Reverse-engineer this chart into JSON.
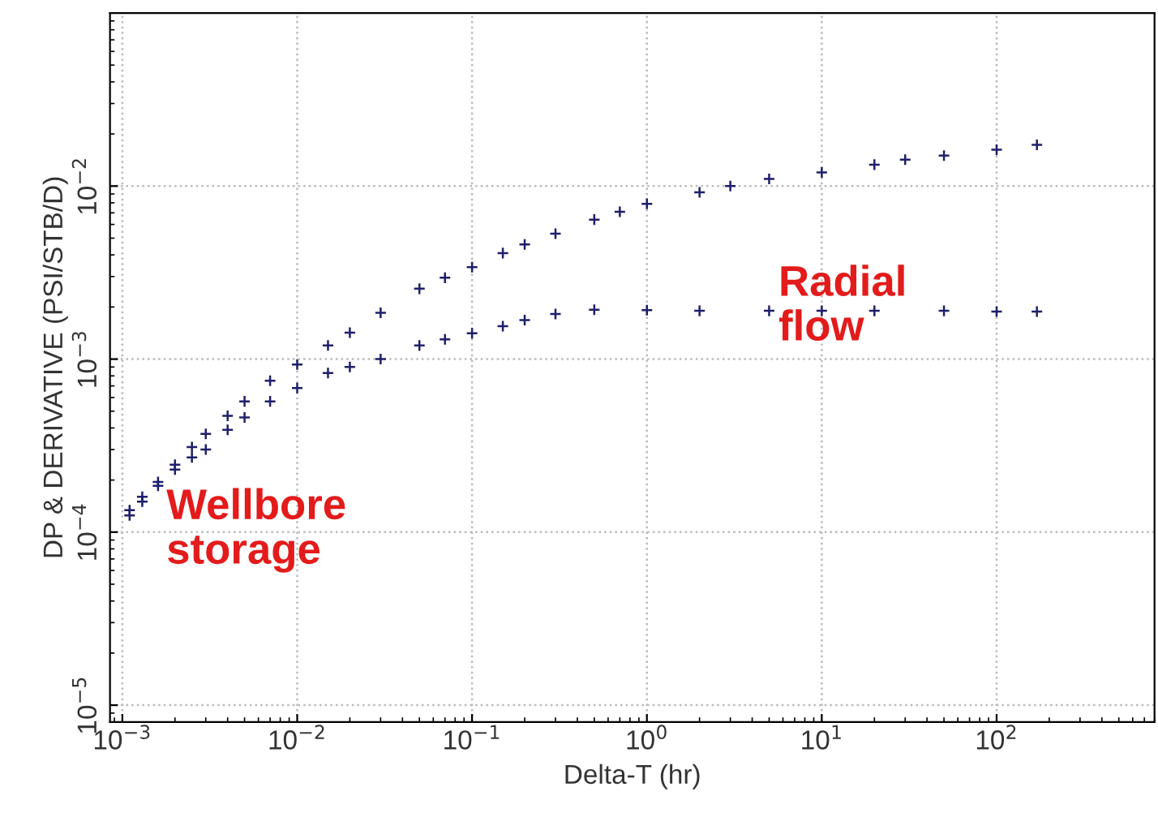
{
  "chart_data": {
    "type": "scatter",
    "log": "xy",
    "xlabel": "Delta-T (hr)",
    "ylabel": "DP & DERIVATIVE (PSI/STB/D)",
    "xlim": [
      0.00085,
      800
    ],
    "ylim": [
      8e-06,
      0.1
    ],
    "xticks": [
      {
        "value": 0.001,
        "label": "10$^{−3}$"
      },
      {
        "value": 0.01,
        "label": "10$^{−2}$"
      },
      {
        "value": 0.1,
        "label": "10$^{−1}$"
      },
      {
        "value": 1,
        "label": "10$^{0}$"
      },
      {
        "value": 10,
        "label": "10$^{1}$"
      },
      {
        "value": 100,
        "label": "10$^{2}$"
      }
    ],
    "yticks": [
      {
        "value": 1e-05,
        "label": "10$^{−5}$"
      },
      {
        "value": 0.0001,
        "label": "10$^{−4}$"
      },
      {
        "value": 0.001,
        "label": "10$^{−3}$"
      },
      {
        "value": 0.01,
        "label": "10$^{−2}$"
      }
    ],
    "grid": true,
    "marker": "cross",
    "annotations": [
      "Wellbore\nstorage",
      "Radial\nflow"
    ],
    "series": [
      {
        "color": "#1f1f6b",
        "x": [
          0.0011,
          0.0013,
          0.0016,
          0.002,
          0.0025,
          0.003,
          0.004,
          0.005,
          0.007,
          0.01,
          0.015,
          0.02,
          0.03,
          0.05,
          0.07,
          0.1,
          0.15,
          0.2,
          0.3,
          0.5,
          0.7,
          1,
          2,
          3,
          5,
          10,
          20,
          30,
          50,
          100,
          170
        ],
        "values": [
          0.000134,
          0.00016,
          0.000195,
          0.000245,
          0.00031,
          0.00037,
          0.00047,
          0.00057,
          0.00075,
          0.00093,
          0.0012,
          0.00142,
          0.00185,
          0.00255,
          0.00295,
          0.0034,
          0.0041,
          0.0046,
          0.0053,
          0.0064,
          0.0071,
          0.0079,
          0.0092,
          0.01,
          0.011,
          0.012,
          0.0133,
          0.0142,
          0.015,
          0.0162,
          0.0173
        ]
      },
      {
        "color": "#1f1f6b",
        "x": [
          0.0011,
          0.0013,
          0.0016,
          0.002,
          0.0025,
          0.003,
          0.004,
          0.005,
          0.007,
          0.01,
          0.015,
          0.02,
          0.03,
          0.05,
          0.07,
          0.1,
          0.15,
          0.2,
          0.3,
          0.5,
          1,
          2,
          5,
          10,
          20,
          50,
          100,
          170
        ],
        "values": [
          0.000125,
          0.00015,
          0.000185,
          0.00023,
          0.00027,
          0.0003,
          0.00039,
          0.00046,
          0.00057,
          0.00068,
          0.00083,
          0.0009,
          0.001,
          0.0012,
          0.0013,
          0.00141,
          0.00155,
          0.00168,
          0.00182,
          0.00193,
          0.00192,
          0.0019,
          0.0019,
          0.0019,
          0.0019,
          0.0019,
          0.00188,
          0.00188
        ]
      }
    ]
  }
}
